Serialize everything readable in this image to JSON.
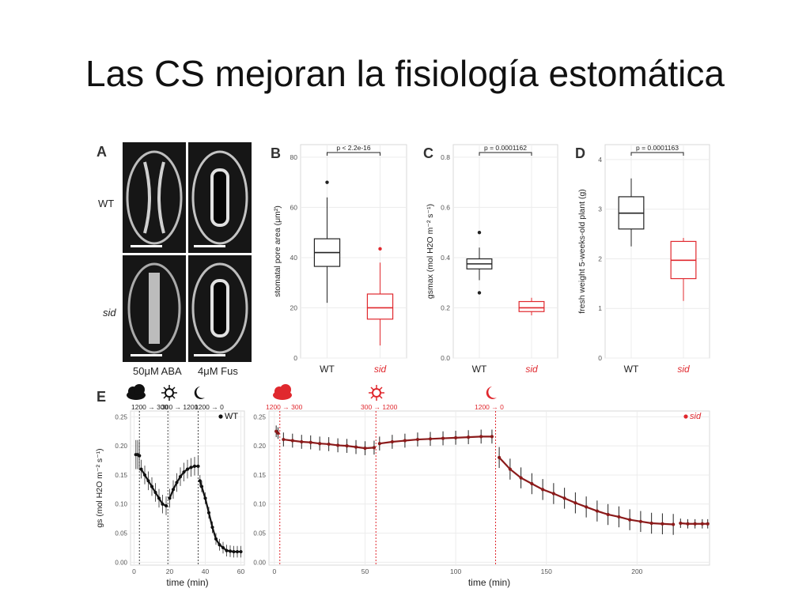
{
  "title": "Las CS mejoran la fisiología estomática",
  "colors": {
    "wt": "#222222",
    "sid": "#e0282e",
    "sid_dark": "#8b1a1a",
    "grid": "#ececec"
  },
  "panel_a": {
    "label": "A",
    "rows": [
      "WT",
      "sid"
    ],
    "columns": [
      "50μM ABA",
      "4μM Fus"
    ]
  },
  "panel_e": {
    "label": "E",
    "wt_transitions": [
      "1200 → 300",
      "300 → 1200",
      "1200 → 0"
    ],
    "sid_transitions": [
      "1200 → 300",
      "300 → 1200",
      "1200 → 0"
    ]
  },
  "chart_data": [
    {
      "panel": "B",
      "type": "box",
      "categories": [
        "WT",
        "sid"
      ],
      "ylabel": "stomatal pore area (μm²)",
      "ylim": [
        0,
        85
      ],
      "yticks": [
        0,
        20,
        40,
        60,
        80
      ],
      "pvalue": "p < 2.2e-16",
      "boxes": [
        {
          "name": "WT",
          "min": 22,
          "q1": 36.5,
          "median": 42,
          "q3": 47.5,
          "max": 64,
          "outliers": [
            70
          ]
        },
        {
          "name": "sid",
          "min": 5,
          "q1": 15.5,
          "median": 20,
          "q3": 25.5,
          "max": 38,
          "outliers": [
            43.5
          ]
        }
      ]
    },
    {
      "panel": "C",
      "type": "box",
      "categories": [
        "WT",
        "sid"
      ],
      "ylabel": "gsmax (mol H2O m⁻² s⁻¹)",
      "ylim": [
        0,
        0.85
      ],
      "yticks": [
        0.0,
        0.2,
        0.4,
        0.6,
        0.8
      ],
      "pvalue": "p = 0.0001162",
      "boxes": [
        {
          "name": "WT",
          "min": 0.31,
          "q1": 0.355,
          "median": 0.375,
          "q3": 0.395,
          "max": 0.44,
          "outliers": [
            0.5,
            0.26
          ]
        },
        {
          "name": "sid",
          "min": 0.17,
          "q1": 0.185,
          "median": 0.2,
          "q3": 0.225,
          "max": 0.24,
          "outliers": []
        }
      ]
    },
    {
      "panel": "D",
      "type": "box",
      "categories": [
        "WT",
        "sid"
      ],
      "ylabel": "fresh weight 5-weeks-old plant (g)",
      "ylim": [
        0,
        4.3
      ],
      "yticks": [
        0,
        1,
        2,
        3,
        4
      ],
      "pvalue": "p = 0.0001163",
      "boxes": [
        {
          "name": "WT",
          "min": 2.25,
          "q1": 2.6,
          "median": 2.92,
          "q3": 3.25,
          "max": 3.62,
          "outliers": []
        },
        {
          "name": "sid",
          "min": 1.15,
          "q1": 1.6,
          "median": 1.97,
          "q3": 2.35,
          "max": 2.42,
          "outliers": []
        }
      ]
    },
    {
      "panel": "E-WT",
      "type": "line",
      "legend": "WT",
      "xlabel": "time (min)",
      "ylabel": "gs (mol H2O m⁻² s⁻¹)",
      "xlim": [
        -2,
        62
      ],
      "ylim": [
        -0.005,
        0.26
      ],
      "xticks": [
        0,
        20,
        40,
        60
      ],
      "yticks": [
        0.0,
        0.05,
        0.1,
        0.15,
        0.2,
        0.25
      ],
      "transitions_at": [
        3,
        19,
        36
      ],
      "segments": [
        {
          "x": [
            1,
            2,
            3
          ],
          "y": [
            0.185,
            0.185,
            0.183
          ],
          "err": 0.025
        },
        {
          "x": [
            4,
            6,
            8,
            10,
            12,
            14,
            16,
            18
          ],
          "y": [
            0.16,
            0.15,
            0.14,
            0.13,
            0.12,
            0.11,
            0.1,
            0.097
          ],
          "err": 0.016
        },
        {
          "x": [
            20,
            22,
            24,
            26,
            28,
            30,
            32,
            34,
            36
          ],
          "y": [
            0.11,
            0.125,
            0.137,
            0.147,
            0.155,
            0.16,
            0.163,
            0.165,
            0.165
          ],
          "err": 0.016
        },
        {
          "x": [
            37,
            38,
            40,
            42,
            44,
            46,
            48,
            50,
            52,
            54,
            56,
            58,
            60
          ],
          "y": [
            0.14,
            0.13,
            0.11,
            0.085,
            0.06,
            0.04,
            0.03,
            0.025,
            0.02,
            0.019,
            0.018,
            0.018,
            0.018
          ],
          "err": 0.01
        }
      ]
    },
    {
      "panel": "E-sid",
      "type": "line",
      "legend": "sid",
      "xlabel": "time (min)",
      "xlim": [
        -3,
        240
      ],
      "ylim": [
        -0.005,
        0.26
      ],
      "xticks": [
        0,
        50,
        100,
        150,
        200
      ],
      "yticks": [
        0.0,
        0.05,
        0.1,
        0.15,
        0.2,
        0.25
      ],
      "transitions_at": [
        3,
        56,
        122
      ],
      "segments": [
        {
          "x": [
            1,
            2
          ],
          "y": [
            0.225,
            0.222
          ],
          "err": 0.01
        },
        {
          "x": [
            5,
            10,
            15,
            20,
            25,
            30,
            35,
            40,
            45,
            50,
            55
          ],
          "y": [
            0.211,
            0.209,
            0.207,
            0.206,
            0.204,
            0.203,
            0.201,
            0.2,
            0.198,
            0.196,
            0.197
          ],
          "err": 0.012
        },
        {
          "x": [
            58,
            65,
            72,
            79,
            86,
            93,
            100,
            107,
            114,
            120
          ],
          "y": [
            0.204,
            0.207,
            0.209,
            0.211,
            0.212,
            0.213,
            0.214,
            0.215,
            0.216,
            0.216
          ],
          "err": 0.012
        },
        {
          "x": [
            124,
            130,
            136,
            142,
            148,
            154,
            160,
            166,
            172,
            178,
            184,
            190,
            196,
            202,
            208,
            214,
            220
          ],
          "y": [
            0.18,
            0.16,
            0.145,
            0.135,
            0.125,
            0.118,
            0.11,
            0.102,
            0.095,
            0.088,
            0.082,
            0.078,
            0.073,
            0.07,
            0.067,
            0.066,
            0.065
          ],
          "err": 0.018
        },
        {
          "x": [
            224,
            228,
            232,
            236,
            239
          ],
          "y": [
            0.067,
            0.066,
            0.066,
            0.066,
            0.066
          ],
          "err": 0.008
        }
      ]
    }
  ]
}
